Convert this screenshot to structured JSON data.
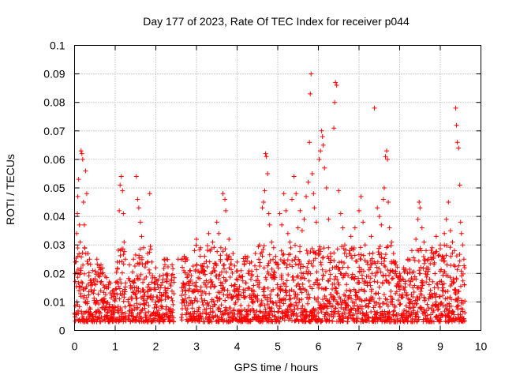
{
  "chart_data": {
    "type": "scatter",
    "title": "Day 177 of 2023, Rate Of TEC Index for receiver p044",
    "xlabel": "GPS time / hours",
    "ylabel": "ROTI / TECUs",
    "xlim": [
      0,
      10
    ],
    "ylim": [
      0,
      0.1
    ],
    "xticks": [
      "0",
      "1",
      "2",
      "3",
      "4",
      "5",
      "6",
      "7",
      "8",
      "9",
      "10"
    ],
    "yticks": [
      "0",
      "0.01",
      "0.02",
      "0.03",
      "0.04",
      "0.05",
      "0.06",
      "0.07",
      "0.08",
      "0.09",
      "0.1"
    ],
    "grid": true,
    "marker": "+",
    "color": "#ff0000",
    "series": [
      {
        "name": "ROTI",
        "points": [
          [
            0.02,
            0.024
          ],
          [
            0.05,
            0.034
          ],
          [
            0.07,
            0.041
          ],
          [
            0.08,
            0.047
          ],
          [
            0.1,
            0.053
          ],
          [
            0.12,
            0.037
          ],
          [
            0.14,
            0.031
          ],
          [
            0.16,
            0.063
          ],
          [
            0.18,
            0.062
          ],
          [
            0.2,
            0.06
          ],
          [
            0.22,
            0.045
          ],
          [
            0.24,
            0.037
          ],
          [
            0.25,
            0.029
          ],
          [
            0.27,
            0.056
          ],
          [
            0.3,
            0.048
          ],
          [
            0.33,
            0.027
          ],
          [
            0.37,
            0.025
          ],
          [
            0.45,
            0.021
          ],
          [
            0.55,
            0.025
          ],
          [
            0.65,
            0.023
          ],
          [
            0.75,
            0.019
          ],
          [
            0.85,
            0.017
          ],
          [
            0.95,
            0.014
          ],
          [
            1.05,
            0.024
          ],
          [
            1.1,
            0.042
          ],
          [
            1.12,
            0.051
          ],
          [
            1.15,
            0.054
          ],
          [
            1.18,
            0.049
          ],
          [
            1.2,
            0.041
          ],
          [
            1.22,
            0.031
          ],
          [
            1.13,
            0.028
          ],
          [
            1.25,
            0.025
          ],
          [
            1.35,
            0.023
          ],
          [
            1.45,
            0.025
          ],
          [
            1.52,
            0.054
          ],
          [
            1.55,
            0.046
          ],
          [
            1.58,
            0.043
          ],
          [
            1.62,
            0.038
          ],
          [
            1.65,
            0.033
          ],
          [
            1.7,
            0.029
          ],
          [
            1.8,
            0.027
          ],
          [
            1.85,
            0.048
          ],
          [
            1.9,
            0.024
          ],
          [
            2.0,
            0.022
          ],
          [
            2.1,
            0.019
          ],
          [
            2.25,
            0.025
          ],
          [
            2.4,
            0.023
          ],
          [
            2.55,
            0.025
          ],
          [
            2.7,
            0.026
          ],
          [
            2.85,
            0.021
          ],
          [
            2.95,
            0.028
          ],
          [
            3.0,
            0.032
          ],
          [
            3.1,
            0.029
          ],
          [
            3.2,
            0.026
          ],
          [
            3.3,
            0.034
          ],
          [
            3.4,
            0.031
          ],
          [
            3.5,
            0.038
          ],
          [
            3.55,
            0.034
          ],
          [
            3.6,
            0.029
          ],
          [
            3.65,
            0.048
          ],
          [
            3.7,
            0.046
          ],
          [
            3.72,
            0.042
          ],
          [
            3.8,
            0.032
          ],
          [
            3.9,
            0.027
          ],
          [
            4.0,
            0.024
          ],
          [
            4.1,
            0.021
          ],
          [
            4.2,
            0.026
          ],
          [
            4.35,
            0.024
          ],
          [
            4.45,
            0.027
          ],
          [
            4.55,
            0.03
          ],
          [
            4.62,
            0.043
          ],
          [
            4.65,
            0.045
          ],
          [
            4.68,
            0.049
          ],
          [
            4.7,
            0.062
          ],
          [
            4.72,
            0.061
          ],
          [
            4.75,
            0.055
          ],
          [
            4.78,
            0.041
          ],
          [
            4.8,
            0.037
          ],
          [
            4.85,
            0.031
          ],
          [
            4.9,
            0.029
          ],
          [
            4.95,
            0.026
          ],
          [
            5.05,
            0.041
          ],
          [
            5.1,
            0.037
          ],
          [
            5.15,
            0.048
          ],
          [
            5.2,
            0.042
          ],
          [
            5.25,
            0.034
          ],
          [
            5.3,
            0.031
          ],
          [
            5.35,
            0.046
          ],
          [
            5.4,
            0.054
          ],
          [
            5.45,
            0.048
          ],
          [
            5.5,
            0.036
          ],
          [
            5.55,
            0.042
          ],
          [
            5.6,
            0.035
          ],
          [
            5.65,
            0.039
          ],
          [
            5.7,
            0.047
          ],
          [
            5.75,
            0.052
          ],
          [
            5.78,
            0.066
          ],
          [
            5.8,
            0.083
          ],
          [
            5.82,
            0.09
          ],
          [
            5.85,
            0.055
          ],
          [
            5.88,
            0.048
          ],
          [
            5.9,
            0.043
          ],
          [
            5.95,
            0.038
          ],
          [
            6.0,
            0.028
          ],
          [
            6.02,
            0.06
          ],
          [
            6.05,
            0.063
          ],
          [
            6.08,
            0.07
          ],
          [
            6.1,
            0.068
          ],
          [
            6.12,
            0.065
          ],
          [
            6.15,
            0.057
          ],
          [
            6.2,
            0.05
          ],
          [
            6.25,
            0.039
          ],
          [
            6.3,
            0.027
          ],
          [
            6.38,
            0.071
          ],
          [
            6.4,
            0.08
          ],
          [
            6.42,
            0.087
          ],
          [
            6.45,
            0.086
          ],
          [
            6.5,
            0.049
          ],
          [
            6.55,
            0.041
          ],
          [
            6.6,
            0.036
          ],
          [
            6.65,
            0.03
          ],
          [
            6.7,
            0.026
          ],
          [
            6.8,
            0.033
          ],
          [
            6.9,
            0.036
          ],
          [
            7.0,
            0.042
          ],
          [
            7.05,
            0.047
          ],
          [
            7.1,
            0.038
          ],
          [
            7.15,
            0.03
          ],
          [
            7.2,
            0.024
          ],
          [
            7.3,
            0.033
          ],
          [
            7.38,
            0.078
          ],
          [
            7.45,
            0.043
          ],
          [
            7.5,
            0.04
          ],
          [
            7.55,
            0.037
          ],
          [
            7.6,
            0.046
          ],
          [
            7.62,
            0.05
          ],
          [
            7.65,
            0.061
          ],
          [
            7.68,
            0.063
          ],
          [
            7.7,
            0.06
          ],
          [
            7.72,
            0.045
          ],
          [
            7.75,
            0.036
          ],
          [
            7.8,
            0.031
          ],
          [
            7.85,
            0.027
          ],
          [
            7.9,
            0.024
          ],
          [
            8.0,
            0.02
          ],
          [
            8.1,
            0.022
          ],
          [
            8.2,
            0.025
          ],
          [
            8.3,
            0.028
          ],
          [
            8.4,
            0.032
          ],
          [
            8.45,
            0.039
          ],
          [
            8.48,
            0.045
          ],
          [
            8.5,
            0.043
          ],
          [
            8.55,
            0.036
          ],
          [
            8.6,
            0.031
          ],
          [
            8.65,
            0.028
          ],
          [
            8.7,
            0.025
          ],
          [
            8.8,
            0.029
          ],
          [
            8.9,
            0.033
          ],
          [
            9.0,
            0.03
          ],
          [
            9.05,
            0.026
          ],
          [
            9.1,
            0.034
          ],
          [
            9.15,
            0.039
          ],
          [
            9.2,
            0.045
          ],
          [
            9.25,
            0.035
          ],
          [
            9.3,
            0.031
          ],
          [
            9.38,
            0.078
          ],
          [
            9.4,
            0.072
          ],
          [
            9.42,
            0.066
          ],
          [
            9.45,
            0.064
          ],
          [
            9.48,
            0.051
          ],
          [
            9.5,
            0.038
          ],
          [
            9.52,
            0.034
          ],
          [
            9.55,
            0.03
          ],
          [
            9.58,
            0.025
          ],
          [
            9.6,
            0.022
          ]
        ]
      }
    ],
    "data_gaps_hours": [
      [
        1.27,
        1.32
      ],
      [
        2.45,
        2.62
      ]
    ]
  }
}
